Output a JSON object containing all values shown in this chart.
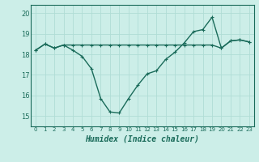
{
  "xlabel": "Humidex (Indice chaleur)",
  "bg_color": "#cceee8",
  "grid_color": "#b0ddd5",
  "line_color": "#1a6b5a",
  "x_ticks": [
    0,
    1,
    2,
    3,
    4,
    5,
    6,
    7,
    8,
    9,
    10,
    11,
    12,
    13,
    14,
    15,
    16,
    17,
    18,
    19,
    20,
    21,
    22,
    23
  ],
  "y_ticks": [
    15,
    16,
    17,
    18,
    19,
    20
  ],
  "ylim": [
    14.5,
    20.4
  ],
  "xlim": [
    -0.5,
    23.5
  ],
  "line1_x": [
    0,
    1,
    2,
    3,
    4,
    5,
    6,
    7,
    8,
    9,
    10,
    11,
    12,
    13,
    14,
    15,
    16,
    17,
    18,
    19,
    20,
    21,
    22,
    23
  ],
  "line1_y": [
    18.2,
    18.5,
    18.3,
    18.45,
    18.45,
    18.45,
    18.45,
    18.45,
    18.45,
    18.45,
    18.45,
    18.45,
    18.45,
    18.45,
    18.45,
    18.45,
    18.45,
    18.45,
    18.45,
    18.45,
    18.3,
    18.65,
    18.7,
    18.6
  ],
  "line2_x": [
    0,
    1,
    2,
    3,
    4,
    5,
    6,
    7,
    8,
    9,
    10,
    11,
    12,
    13,
    14,
    15,
    16,
    17,
    18,
    19,
    20,
    21,
    22,
    23
  ],
  "line2_y": [
    18.2,
    18.5,
    18.3,
    18.45,
    18.2,
    17.9,
    17.3,
    15.85,
    15.2,
    15.15,
    15.85,
    16.5,
    17.05,
    17.2,
    17.75,
    18.1,
    18.55,
    19.1,
    19.2,
    19.8,
    18.3,
    18.65,
    18.7,
    18.6
  ],
  "figsize": [
    3.2,
    2.0
  ],
  "dpi": 100,
  "xlabel_fontsize": 7,
  "tick_fontsize": 5,
  "ytick_fontsize": 6,
  "linewidth": 1.0,
  "markersize": 2.5
}
